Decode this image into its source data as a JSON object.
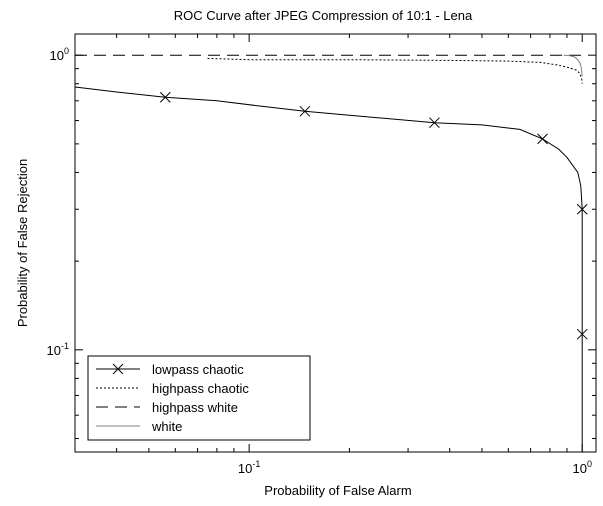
{
  "chart_data": {
    "type": "line",
    "title": "ROC Curve after JPEG Compression of 10:1 - Lena",
    "xlabel": "Probability of False Alarm",
    "ylabel": "Probability of False Rejection",
    "x_scale": "log",
    "y_scale": "log",
    "xlim": [
      0.03,
      1.1
    ],
    "ylim": [
      0.045,
      1.18
    ],
    "x_ticks": [
      {
        "value": 0.1,
        "base": "10",
        "exp": "-1"
      },
      {
        "value": 1,
        "base": "10",
        "exp": "0"
      }
    ],
    "y_ticks": [
      {
        "value": 0.1,
        "base": "10",
        "exp": "-1"
      },
      {
        "value": 1,
        "base": "10",
        "exp": "0"
      }
    ],
    "grid": false,
    "legend_position": "bottom-left",
    "series": [
      {
        "name": "lowpass chaotic",
        "color": "#000000",
        "dash": "solid",
        "marker": "x",
        "x": [
          0.03,
          0.04,
          0.056,
          0.08,
          0.11,
          0.147,
          0.2,
          0.28,
          0.36,
          0.5,
          0.65,
          0.76,
          0.85,
          0.9,
          0.94,
          0.97,
          0.99,
          1.0,
          1.0,
          1.0
        ],
        "y": [
          0.78,
          0.75,
          0.72,
          0.7,
          0.67,
          0.645,
          0.625,
          0.605,
          0.59,
          0.58,
          0.56,
          0.52,
          0.48,
          0.45,
          0.42,
          0.4,
          0.36,
          0.3,
          0.113,
          0.045
        ],
        "markers_x": [
          0.056,
          0.147,
          0.36,
          0.76,
          1.0,
          1.0
        ],
        "markers_y": [
          0.72,
          0.645,
          0.59,
          0.52,
          0.3,
          0.113
        ]
      },
      {
        "name": "highpass chaotic",
        "color": "#000000",
        "dash": "dotted",
        "marker": "none",
        "x": [
          0.075,
          0.1,
          0.2,
          0.4,
          0.6,
          0.75,
          0.85,
          0.92,
          0.96,
          0.98,
          0.995,
          1.0
        ],
        "y": [
          0.975,
          0.965,
          0.965,
          0.96,
          0.955,
          0.945,
          0.925,
          0.905,
          0.89,
          0.87,
          0.84,
          0.8
        ]
      },
      {
        "name": "highpass white",
        "color": "#000000",
        "dash": "dashed",
        "marker": "none",
        "x": [
          0.03,
          0.1,
          0.3,
          0.6,
          0.9,
          1.0
        ],
        "y": [
          1.0,
          1.0,
          1.0,
          1.0,
          1.0,
          1.0
        ]
      },
      {
        "name": "white",
        "color": "#808080",
        "dash": "solid",
        "marker": "none",
        "x": [
          0.88,
          0.92,
          0.95,
          0.97,
          0.985,
          0.995,
          1.0
        ],
        "y": [
          1.0,
          0.995,
          0.985,
          0.965,
          0.94,
          0.9,
          0.85
        ]
      }
    ]
  }
}
